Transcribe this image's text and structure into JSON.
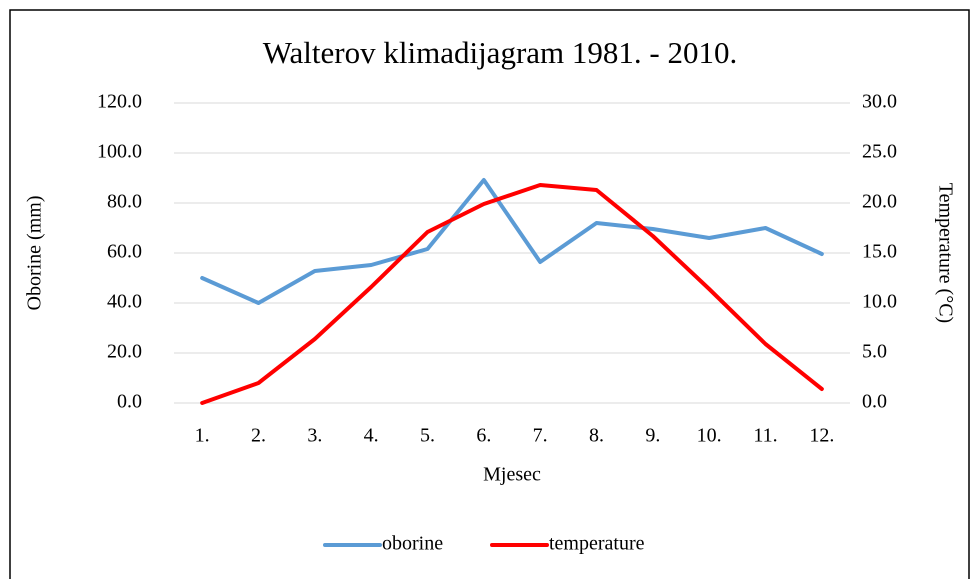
{
  "chart_data": {
    "type": "line",
    "title": "Walterov klimadijagram 1981. - 2010.",
    "xlabel": "Mjesec",
    "ylabel": "Oborine (mm)",
    "y2label": "Temperature (°C)",
    "categories": [
      "1.",
      "2.",
      "3.",
      "4.",
      "5.",
      "6.",
      "7.",
      "8.",
      "9.",
      "10.",
      "11.",
      "12."
    ],
    "series": [
      {
        "name": "oborine",
        "color": "#5b9bd5",
        "values": [
          50,
          40,
          52.8,
          55.2,
          61.6,
          89.2,
          56.4,
          72,
          69.6,
          66,
          70,
          59.6
        ]
      },
      {
        "name": "temperature",
        "color": "#ff0000",
        "axis": "y2",
        "values": [
          0,
          2.0,
          6.4,
          11.6,
          17.1,
          19.9,
          21.8,
          21.3,
          16.7,
          11.4,
          5.9,
          1.4
        ]
      }
    ],
    "ylim": [
      0,
      120
    ],
    "yticks": [
      {
        "value": 0,
        "label": "0.0"
      },
      {
        "value": 20,
        "label": "20.0"
      },
      {
        "value": 40,
        "label": "40.0"
      },
      {
        "value": 60,
        "label": "60.0"
      },
      {
        "value": 80,
        "label": "80.0"
      },
      {
        "value": 100,
        "label": "100.0"
      },
      {
        "value": 120,
        "label": "120.0"
      }
    ],
    "y2lim": [
      0,
      30
    ],
    "y2ticks": [
      {
        "value": 0,
        "label": "0.0"
      },
      {
        "value": 5,
        "label": "5.0"
      },
      {
        "value": 10,
        "label": "10.0"
      },
      {
        "value": 15,
        "label": "15.0"
      },
      {
        "value": 20,
        "label": "20.0"
      },
      {
        "value": 25,
        "label": "25.0"
      },
      {
        "value": 30,
        "label": "30.0"
      }
    ],
    "grid": true,
    "legend": "bottom"
  }
}
